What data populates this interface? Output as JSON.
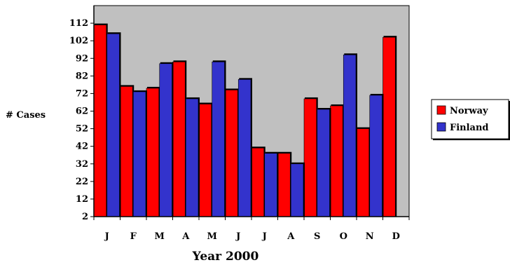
{
  "chart_data": {
    "type": "bar",
    "title": "",
    "xlabel": "Year 2000",
    "ylabel": "# Cases",
    "categories": [
      "J",
      "F",
      "M",
      "A",
      "M",
      "J",
      "J",
      "A",
      "S",
      "O",
      "N",
      "D"
    ],
    "series": [
      {
        "name": "Norway",
        "color": "#ff0000",
        "values": [
          111,
          76,
          75,
          90,
          66,
          74,
          41,
          38,
          69,
          65,
          52,
          104
        ]
      },
      {
        "name": "Finland",
        "color": "#3333cc",
        "values": [
          106,
          73,
          89,
          69,
          90,
          80,
          38,
          32,
          63,
          94,
          71,
          0
        ]
      }
    ],
    "ylim": [
      2,
      122
    ],
    "yticks": [
      "2",
      "12",
      "22",
      "32",
      "42",
      "52",
      "62",
      "72",
      "82",
      "92",
      "102",
      "112"
    ],
    "grid": false,
    "legend_position": "right",
    "plot_background": "#c0c0c0"
  }
}
